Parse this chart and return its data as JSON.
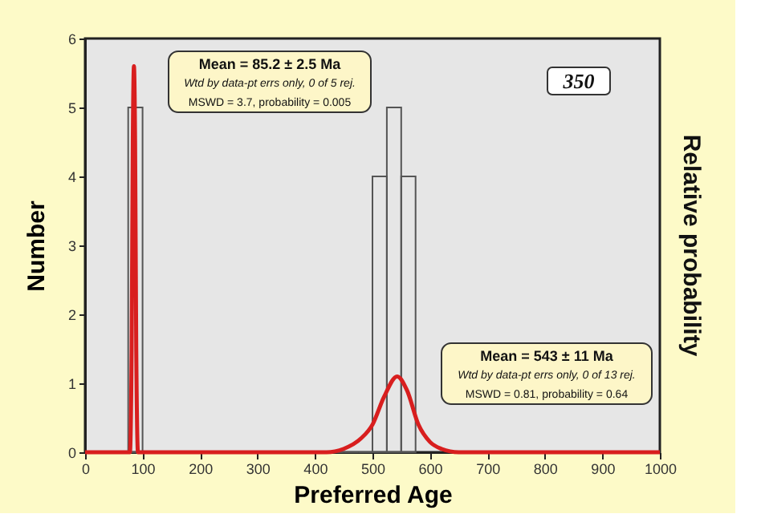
{
  "chart_data": {
    "type": "histogram",
    "xlabel": "Preferred Age",
    "ylabel": "Number",
    "y2label": "Relative probability",
    "bins": [
      75,
      100,
      125,
      150,
      175,
      200,
      225,
      250,
      275,
      300,
      325,
      350,
      375,
      400,
      425,
      450,
      475,
      500,
      525,
      550,
      575
    ],
    "values": [
      5,
      0,
      0,
      0,
      0,
      0,
      0,
      0,
      0,
      0,
      0,
      0,
      0,
      0,
      0,
      0,
      0,
      4,
      5,
      4
    ],
    "color": "#555555",
    "series": [
      {
        "type": "line",
        "color": "#d81e1e",
        "x": [
          0,
          78,
          81,
          83,
          85,
          87,
          89,
          92,
          420,
          450,
          480,
          500,
          520,
          543,
          560,
          580,
          600,
          620,
          650,
          1000
        ],
        "values": [
          0,
          0,
          1.5,
          4.5,
          5.6,
          4.5,
          1.5,
          0,
          0,
          0.05,
          0.2,
          0.4,
          0.8,
          1.1,
          0.9,
          0.4,
          0.15,
          0.05,
          0,
          0
        ]
      }
    ],
    "xlim": [
      0,
      1000
    ],
    "xticks": [
      0,
      100,
      200,
      300,
      400,
      500,
      600,
      700,
      800,
      900,
      {
        "value": 1000,
        "label": "1000"
      }
    ],
    "ylim": [
      0,
      6
    ],
    "yticks": [
      0,
      1,
      2,
      3,
      4,
      5,
      6
    ],
    "grid": false,
    "annotations": [
      "Mean = 85.2 ± 2.5 Ma",
      "Wtd by data-pt errs only, 0 of 5 rej.",
      "MSWD = 3.7, probability = 0.005",
      "Mean = 543 ± 11 Ma",
      "Wtd by data-pt errs only, 0 of 13 rej.",
      "MSWD = 0.81, probability = 0.64",
      "350"
    ]
  }
}
